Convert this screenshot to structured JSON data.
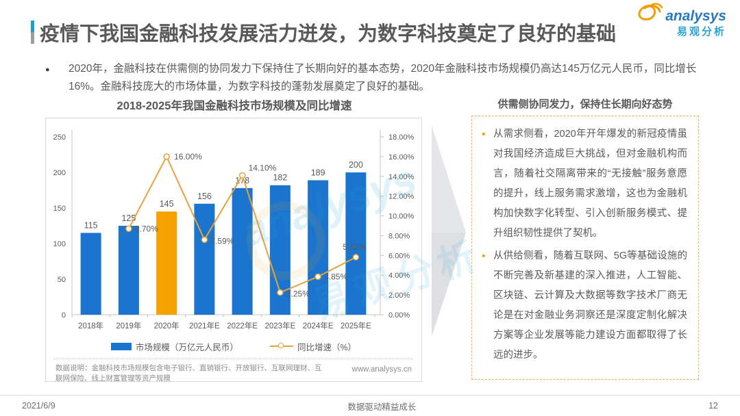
{
  "header": {
    "title": "疫情下我国金融科技发展活力迸发，为数字科技奠定了良好的基础"
  },
  "logo": {
    "brand": "analysys",
    "brand_cn": "易观分析"
  },
  "intro": {
    "marker": "●",
    "text": "2020年，金融科技在供需侧的协同发力下保持住了长期向好的基本态势，2020年金融科技市场规模仍高达145万亿元人民币，同比增长16%。金融科技庞大的市场体量，为数字科技的蓬勃发展奠定了良好的基础。"
  },
  "chart_data": {
    "type": "bar+line",
    "title": "2018-2025年我国金融科技市场规模及同比增速",
    "categories": [
      "2018年",
      "2019年",
      "2020年",
      "2021年E",
      "2022年E",
      "2023年E",
      "2024年E",
      "2025年E"
    ],
    "series": [
      {
        "name": "市场规模（万亿元人民币）",
        "type": "bar",
        "axis": "left",
        "values": [
          115,
          125,
          145,
          156,
          178,
          182,
          189,
          200
        ],
        "color": "#1b75ce",
        "highlight": {
          "index": 2,
          "color": "#f5a200"
        }
      },
      {
        "name": "同比增速（%）",
        "type": "line",
        "axis": "right",
        "values": [
          null,
          8.7,
          16.0,
          7.59,
          14.1,
          2.25,
          3.85,
          5.82
        ],
        "labels": [
          "",
          "8.70%",
          "16.00%",
          "7.59%",
          "14.10%",
          "2.25%",
          "3.85%",
          "5.82%"
        ],
        "color": "#e9a23b"
      }
    ],
    "left_axis": {
      "min": 0,
      "max": 250,
      "step": 50,
      "ticks": [
        "0",
        "50",
        "100",
        "150",
        "200",
        "250"
      ]
    },
    "right_axis": {
      "min": 0,
      "max": 18,
      "step": 2,
      "ticks": [
        "0.00%",
        "2.00%",
        "4.00%",
        "6.00%",
        "8.00%",
        "10.00%",
        "12.00%",
        "14.00%",
        "16.00%",
        "18.00%"
      ]
    },
    "legend_position": "bottom",
    "grid": false
  },
  "chart_meta": {
    "footnote": "数据说明：金融科技市场规模包含电子银行、直销银行、开放银行、互联网理财、互联网保险、线上财富管理等资产规模",
    "website": "www.analysys.cn"
  },
  "panel": {
    "title": "供需侧协同发力，保持住长期向好态势",
    "bullet_marker": "•",
    "bullets": [
      "从需求侧看，2020年开年爆发的新冠疫情虽对我国经济造成巨大挑战，但对金融机构而言，随着社交隔离带来的“无接触”服务意愿的提升，线上服务需求激增，这也为金融机构加快数字化转型、引入创新服务模式、提升组织韧性提供了契机。",
      "从供给侧看，随着互联网、5G等基础设施的不断完善及新基建的深入推进，人工智能、区块链、云计算及大数据等数字技术厂商无论是在对金融业务洞察还是深度定制化解决方案等企业发展等能力建设方面都取得了长远的进步。"
    ]
  },
  "watermark": {
    "line1": "analysys",
    "line2": "易观分析"
  },
  "footer": {
    "date": "2021/6/9",
    "slogan": "数据驱动精益成长",
    "page": "12"
  }
}
